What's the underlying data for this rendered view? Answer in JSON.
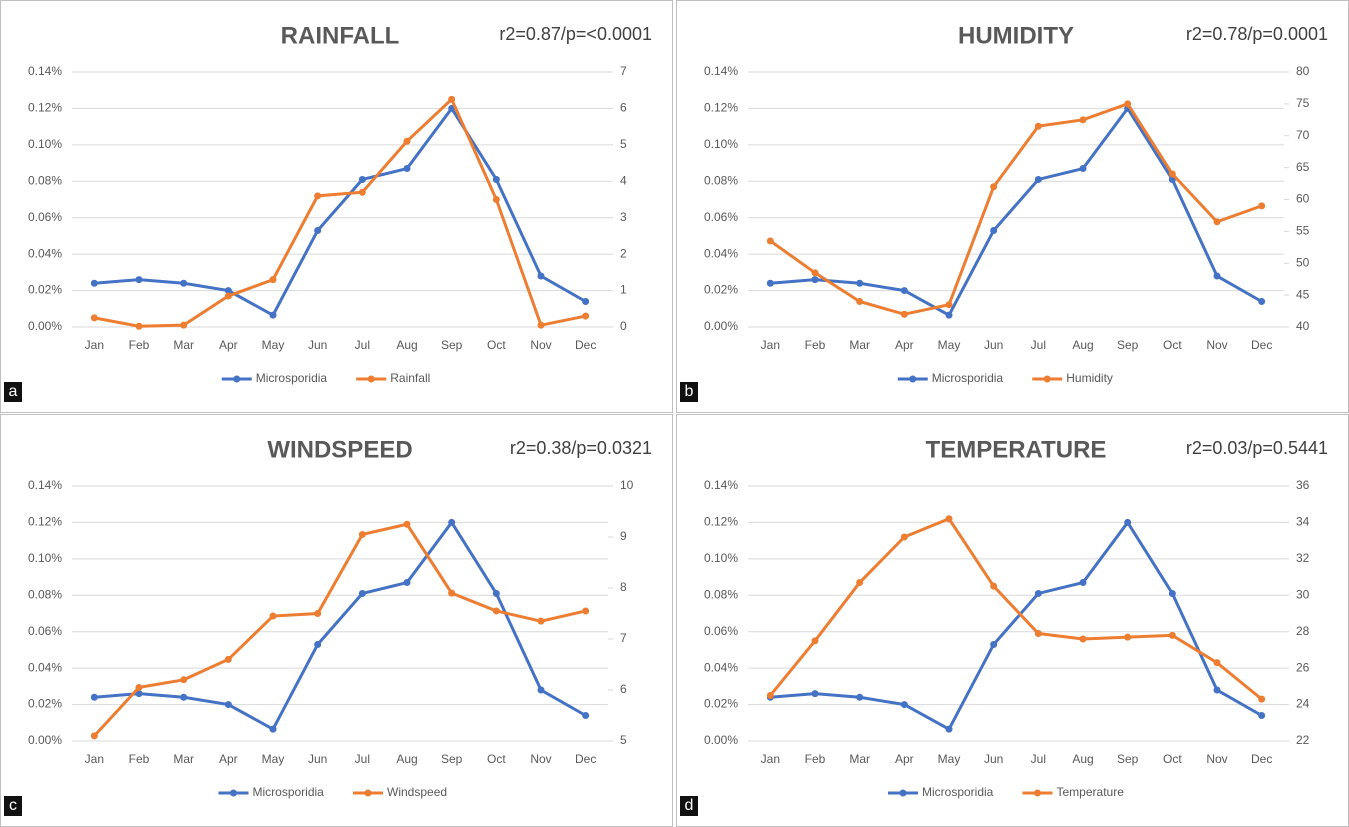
{
  "chart_data": [
    {
      "type": "line",
      "panel_label": "a",
      "title": "RAINFALL",
      "annotation": "r2=0.87/p=<0.0001",
      "categories": [
        "Jan",
        "Feb",
        "Mar",
        "Apr",
        "May",
        "Jun",
        "Jul",
        "Aug",
        "Sep",
        "Oct",
        "Nov",
        "Dec"
      ],
      "series": [
        {
          "name": "Microsporidia",
          "color": "#4472c4",
          "values": [
            0.024,
            0.026,
            0.024,
            0.02,
            0.0065,
            0.053,
            0.081,
            0.087,
            0.12,
            0.081,
            0.028,
            0.014
          ]
        },
        {
          "name": "Rainfall",
          "color": "#ed7d31",
          "axis": "y2",
          "values": [
            0.25,
            0.02,
            0.05,
            0.85,
            1.3,
            3.6,
            3.7,
            5.1,
            6.25,
            3.5,
            0.05,
            0.3
          ]
        }
      ],
      "ylim": [
        0,
        0.14
      ],
      "yticks": [
        {
          "value": 0,
          "label": "0.00%"
        },
        {
          "value": 0.02,
          "label": "0.02%"
        },
        {
          "value": 0.04,
          "label": "0.04%"
        },
        {
          "value": 0.06,
          "label": "0.06%"
        },
        {
          "value": 0.08,
          "label": "0.08%"
        },
        {
          "value": 0.1,
          "label": "0.10%"
        },
        {
          "value": 0.12,
          "label": "0.12%"
        },
        {
          "value": 0.14,
          "label": "0.14%"
        }
      ],
      "y2lim": [
        0,
        7
      ],
      "y2ticks": [
        0,
        1,
        2,
        3,
        4,
        5,
        6,
        7
      ],
      "grid": true,
      "legend": "bottom"
    },
    {
      "type": "line",
      "panel_label": "b",
      "title": "HUMIDITY",
      "annotation": "r2=0.78/p=0.0001",
      "categories": [
        "Jan",
        "Feb",
        "Mar",
        "Apr",
        "May",
        "Jun",
        "Jul",
        "Aug",
        "Sep",
        "Oct",
        "Nov",
        "Dec"
      ],
      "series": [
        {
          "name": "Microsporidia",
          "color": "#4472c4",
          "values": [
            0.024,
            0.026,
            0.024,
            0.02,
            0.0065,
            0.053,
            0.081,
            0.087,
            0.12,
            0.081,
            0.028,
            0.014
          ]
        },
        {
          "name": "Humidity",
          "color": "#ed7d31",
          "axis": "y2",
          "values": [
            53.5,
            48.5,
            44,
            42,
            43.5,
            62,
            71.5,
            72.5,
            75,
            64,
            56.5,
            59
          ]
        }
      ],
      "ylim": [
        0,
        0.14
      ],
      "yticks": [
        {
          "value": 0,
          "label": "0.00%"
        },
        {
          "value": 0.02,
          "label": "0.02%"
        },
        {
          "value": 0.04,
          "label": "0.04%"
        },
        {
          "value": 0.06,
          "label": "0.06%"
        },
        {
          "value": 0.08,
          "label": "0.08%"
        },
        {
          "value": 0.1,
          "label": "0.10%"
        },
        {
          "value": 0.12,
          "label": "0.12%"
        },
        {
          "value": 0.14,
          "label": "0.14%"
        }
      ],
      "y2lim": [
        40,
        80
      ],
      "y2ticks": [
        40,
        45,
        50,
        55,
        60,
        65,
        70,
        75,
        80
      ],
      "grid": true,
      "legend": "bottom"
    },
    {
      "type": "line",
      "panel_label": "c",
      "title": "WINDSPEED",
      "annotation": "r2=0.38/p=0.0321",
      "categories": [
        "Jan",
        "Feb",
        "Mar",
        "Apr",
        "May",
        "Jun",
        "Jul",
        "Aug",
        "Sep",
        "Oct",
        "Nov",
        "Dec"
      ],
      "series": [
        {
          "name": "Microsporidia",
          "color": "#4472c4",
          "values": [
            0.024,
            0.026,
            0.024,
            0.02,
            0.0065,
            0.053,
            0.081,
            0.087,
            0.12,
            0.081,
            0.028,
            0.014
          ]
        },
        {
          "name": "Windspeed",
          "color": "#ed7d31",
          "axis": "y2",
          "values": [
            5.1,
            6.05,
            6.2,
            6.6,
            7.45,
            7.5,
            9.05,
            9.25,
            7.9,
            7.55,
            7.35,
            7.55
          ]
        }
      ],
      "ylim": [
        0,
        0.14
      ],
      "yticks": [
        {
          "value": 0,
          "label": "0.00%"
        },
        {
          "value": 0.02,
          "label": "0.02%"
        },
        {
          "value": 0.04,
          "label": "0.04%"
        },
        {
          "value": 0.06,
          "label": "0.06%"
        },
        {
          "value": 0.08,
          "label": "0.08%"
        },
        {
          "value": 0.1,
          "label": "0.10%"
        },
        {
          "value": 0.12,
          "label": "0.12%"
        },
        {
          "value": 0.14,
          "label": "0.14%"
        }
      ],
      "y2lim": [
        5,
        10
      ],
      "y2ticks": [
        5,
        6,
        7,
        8,
        9,
        10
      ],
      "grid": true,
      "legend": "bottom"
    },
    {
      "type": "line",
      "panel_label": "d",
      "title": "TEMPERATURE",
      "annotation": "r2=0.03/p=0.5441",
      "categories": [
        "Jan",
        "Feb",
        "Mar",
        "Apr",
        "May",
        "Jun",
        "Jul",
        "Aug",
        "Sep",
        "Oct",
        "Nov",
        "Dec"
      ],
      "series": [
        {
          "name": "Microsporidia",
          "color": "#4472c4",
          "values": [
            0.024,
            0.026,
            0.024,
            0.02,
            0.0065,
            0.053,
            0.081,
            0.087,
            0.12,
            0.081,
            0.028,
            0.014
          ]
        },
        {
          "name": "Temperature",
          "color": "#ed7d31",
          "axis": "y2",
          "values": [
            24.5,
            27.5,
            30.7,
            33.2,
            34.2,
            30.5,
            27.9,
            27.6,
            27.7,
            27.8,
            26.3,
            24.3
          ]
        }
      ],
      "ylim": [
        0,
        0.14
      ],
      "yticks": [
        {
          "value": 0,
          "label": "0.00%"
        },
        {
          "value": 0.02,
          "label": "0.02%"
        },
        {
          "value": 0.04,
          "label": "0.04%"
        },
        {
          "value": 0.06,
          "label": "0.06%"
        },
        {
          "value": 0.08,
          "label": "0.08%"
        },
        {
          "value": 0.1,
          "label": "0.10%"
        },
        {
          "value": 0.12,
          "label": "0.12%"
        },
        {
          "value": 0.14,
          "label": "0.14%"
        }
      ],
      "y2lim": [
        22,
        36
      ],
      "y2ticks": [
        22,
        24,
        26,
        28,
        30,
        32,
        34,
        36
      ],
      "grid": true,
      "legend": "bottom"
    }
  ]
}
